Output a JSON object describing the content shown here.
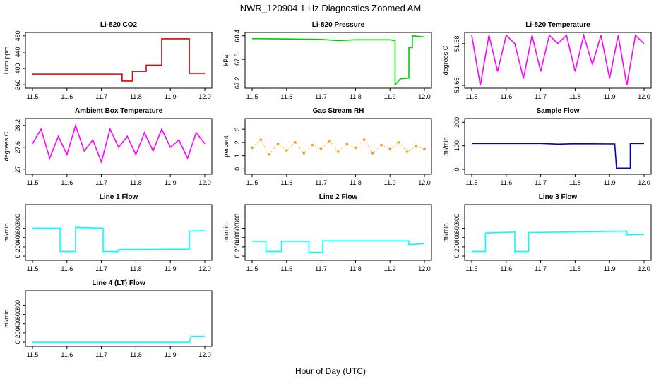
{
  "page": {
    "title": "NWR_120904  1 Hz Diagnostics Zoomed AM",
    "xlabel": "Hour of Day (UTC)"
  },
  "chart_data": [
    {
      "type": "line",
      "title": "Li-820 CO2",
      "ylabel": "Licor ppm",
      "color": "#dd0000",
      "xlim": [
        11.5,
        12.0
      ],
      "ylim": [
        355,
        485
      ],
      "xticks": [
        "11.5",
        "11.6",
        "11.7",
        "11.8",
        "11.9",
        "12.0"
      ],
      "yticks": [
        360,
        400,
        440,
        480
      ],
      "x": [
        11.5,
        11.76,
        11.76,
        11.79,
        11.79,
        11.83,
        11.83,
        11.875,
        11.875,
        11.955,
        11.955,
        12.0
      ],
      "series": [
        {
          "values": [
            386,
            386,
            369,
            369,
            393,
            393,
            408,
            408,
            473,
            473,
            388,
            388
          ]
        }
      ]
    },
    {
      "type": "line",
      "title": "Li-820 Pressure",
      "ylabel": "kPa",
      "color": "#00cc00",
      "xlim": [
        11.5,
        12.0
      ],
      "ylim": [
        67.1,
        68.45
      ],
      "xticks": [
        "11.5",
        "11.6",
        "11.7",
        "11.8",
        "11.9",
        "12.0"
      ],
      "yticks": [
        67.2,
        67.8,
        68.4
      ],
      "x": [
        11.5,
        11.6,
        11.7,
        11.75,
        11.8,
        11.9,
        11.915,
        11.915,
        11.93,
        11.955,
        11.955,
        11.965,
        11.965,
        12.0
      ],
      "series": [
        {
          "values": [
            68.33,
            68.32,
            68.31,
            68.28,
            68.3,
            68.3,
            68.28,
            67.15,
            67.3,
            67.32,
            68.1,
            68.1,
            68.4,
            68.37
          ]
        }
      ]
    },
    {
      "type": "line",
      "title": "Li-820 Temperature",
      "ylabel": "degrees C",
      "color": "#ff00ff",
      "xlim": [
        11.5,
        12.0
      ],
      "ylim": [
        51.649,
        51.687
      ],
      "xticks": [
        "11.5",
        "11.6",
        "11.7",
        "11.8",
        "11.9",
        "12.0"
      ],
      "yticks": [
        51.65,
        51.68
      ],
      "x": [
        11.5,
        11.525,
        11.55,
        11.575,
        11.6,
        11.625,
        11.65,
        11.675,
        11.7,
        11.725,
        11.75,
        11.775,
        11.8,
        11.825,
        11.85,
        11.875,
        11.9,
        11.925,
        11.95,
        11.975,
        12.0
      ],
      "series": [
        {
          "values": [
            51.686,
            51.65,
            51.686,
            51.66,
            51.686,
            51.68,
            51.655,
            51.686,
            51.66,
            51.686,
            51.68,
            51.686,
            51.66,
            51.686,
            51.665,
            51.686,
            51.655,
            51.686,
            51.65,
            51.686,
            51.68
          ]
        }
      ]
    },
    {
      "type": "line",
      "title": "Ambient Box Temperature",
      "ylabel": "degrees C",
      "color": "#ff00ff",
      "xlim": [
        11.5,
        12.0
      ],
      "ylim": [
        26.9,
        28.35
      ],
      "xticks": [
        "11.5",
        "11.6",
        "11.7",
        "11.8",
        "11.9",
        "12.0"
      ],
      "yticks": [
        27.0,
        27.6,
        28.2
      ],
      "x": [
        11.5,
        11.525,
        11.55,
        11.575,
        11.6,
        11.625,
        11.65,
        11.675,
        11.7,
        11.725,
        11.75,
        11.775,
        11.8,
        11.825,
        11.85,
        11.875,
        11.9,
        11.925,
        11.95,
        11.975,
        12.0
      ],
      "series": [
        {
          "values": [
            27.7,
            28.1,
            27.3,
            27.9,
            27.4,
            28.2,
            27.5,
            27.8,
            27.2,
            28.1,
            27.6,
            27.9,
            27.4,
            28.0,
            27.5,
            28.1,
            27.6,
            27.8,
            27.3,
            28.0,
            27.7
          ]
        }
      ]
    },
    {
      "type": "scatter",
      "title": "Gas Stream RH",
      "ylabel": "percent",
      "color": "#ff9900",
      "xlim": [
        11.5,
        12.0
      ],
      "ylim": [
        -0.3,
        3.7
      ],
      "xticks": [
        "11.5",
        "11.6",
        "11.7",
        "11.8",
        "11.9",
        "12.0"
      ],
      "yticks": [
        0,
        1,
        2,
        3
      ],
      "x": [
        11.5,
        11.525,
        11.55,
        11.575,
        11.6,
        11.625,
        11.65,
        11.675,
        11.7,
        11.725,
        11.75,
        11.775,
        11.8,
        11.825,
        11.85,
        11.875,
        11.9,
        11.925,
        11.95,
        11.975,
        12.0
      ],
      "series": [
        {
          "values": [
            1.6,
            2.2,
            1.1,
            1.9,
            1.4,
            2.0,
            1.2,
            1.8,
            1.5,
            2.1,
            1.3,
            1.9,
            1.6,
            2.2,
            1.2,
            1.8,
            1.5,
            2.0,
            1.3,
            1.7,
            1.5
          ]
        }
      ]
    },
    {
      "type": "line",
      "title": "Sample Flow",
      "ylabel": "ml/min",
      "color": "#0000cc",
      "xlim": [
        11.5,
        12.0
      ],
      "ylim": [
        -15,
        210
      ],
      "xticks": [
        "11.5",
        "11.6",
        "11.7",
        "11.8",
        "11.9",
        "12.0"
      ],
      "yticks": [
        0,
        100,
        200
      ],
      "x": [
        11.5,
        11.7,
        11.75,
        11.8,
        11.915,
        11.92,
        11.92,
        11.96,
        11.96,
        12.0
      ],
      "series": [
        {
          "values": [
            110,
            110,
            107,
            109,
            108,
            5,
            5,
            5,
            110,
            110
          ]
        }
      ]
    },
    {
      "type": "line",
      "title": "Line 1 Flow",
      "ylabel": "ml/min",
      "color": "#00ffff",
      "xlim": [
        11.5,
        12.0
      ],
      "ylim": [
        -60,
        1080
      ],
      "xticks": [
        "11.5",
        "11.6",
        "11.7",
        "11.8",
        "11.9",
        "12.0"
      ],
      "yticks": [
        0,
        200,
        400,
        600,
        800
      ],
      "x": [
        11.5,
        11.58,
        11.58,
        11.625,
        11.625,
        11.705,
        11.705,
        11.75,
        11.75,
        11.955,
        11.955,
        12.0
      ],
      "series": [
        {
          "values": [
            600,
            600,
            100,
            100,
            620,
            600,
            100,
            100,
            140,
            150,
            540,
            550
          ]
        }
      ]
    },
    {
      "type": "line",
      "title": "Line 2 Flow",
      "ylabel": "ml/min",
      "color": "#00ffff",
      "xlim": [
        11.5,
        12.0
      ],
      "ylim": [
        -60,
        1080
      ],
      "xticks": [
        "11.5",
        "11.6",
        "11.7",
        "11.8",
        "11.9",
        "12.0"
      ],
      "yticks": [
        0,
        200,
        400,
        600,
        800
      ],
      "x": [
        11.5,
        11.54,
        11.54,
        11.585,
        11.585,
        11.665,
        11.665,
        11.705,
        11.705,
        11.955,
        11.955,
        12.0
      ],
      "series": [
        {
          "values": [
            320,
            320,
            100,
            100,
            320,
            320,
            80,
            80,
            330,
            330,
            250,
            270
          ]
        }
      ]
    },
    {
      "type": "line",
      "title": "Line 3 Flow",
      "ylabel": "ml/min",
      "color": "#00ffff",
      "xlim": [
        11.5,
        12.0
      ],
      "ylim": [
        -60,
        1080
      ],
      "xticks": [
        "11.5",
        "11.6",
        "11.7",
        "11.8",
        "11.9",
        "12.0"
      ],
      "yticks": [
        0,
        200,
        400,
        600,
        800
      ],
      "x": [
        11.5,
        11.54,
        11.54,
        11.625,
        11.625,
        11.665,
        11.665,
        11.95,
        11.95,
        12.0
      ],
      "series": [
        {
          "values": [
            100,
            100,
            500,
            520,
            100,
            100,
            510,
            540,
            460,
            470
          ]
        }
      ]
    },
    {
      "type": "line",
      "title": "Line 4 (LT) Flow",
      "ylabel": "ml/min",
      "color": "#00ffff",
      "xlim": [
        11.5,
        12.0
      ],
      "ylim": [
        -60,
        1080
      ],
      "xticks": [
        "11.5",
        "11.6",
        "11.7",
        "11.8",
        "11.9",
        "12.0"
      ],
      "yticks": [
        0,
        200,
        400,
        600,
        800
      ],
      "x": [
        11.5,
        11.955,
        11.96,
        12.0
      ],
      "series": [
        {
          "values": [
            0,
            0,
            130,
            130
          ]
        }
      ]
    }
  ]
}
